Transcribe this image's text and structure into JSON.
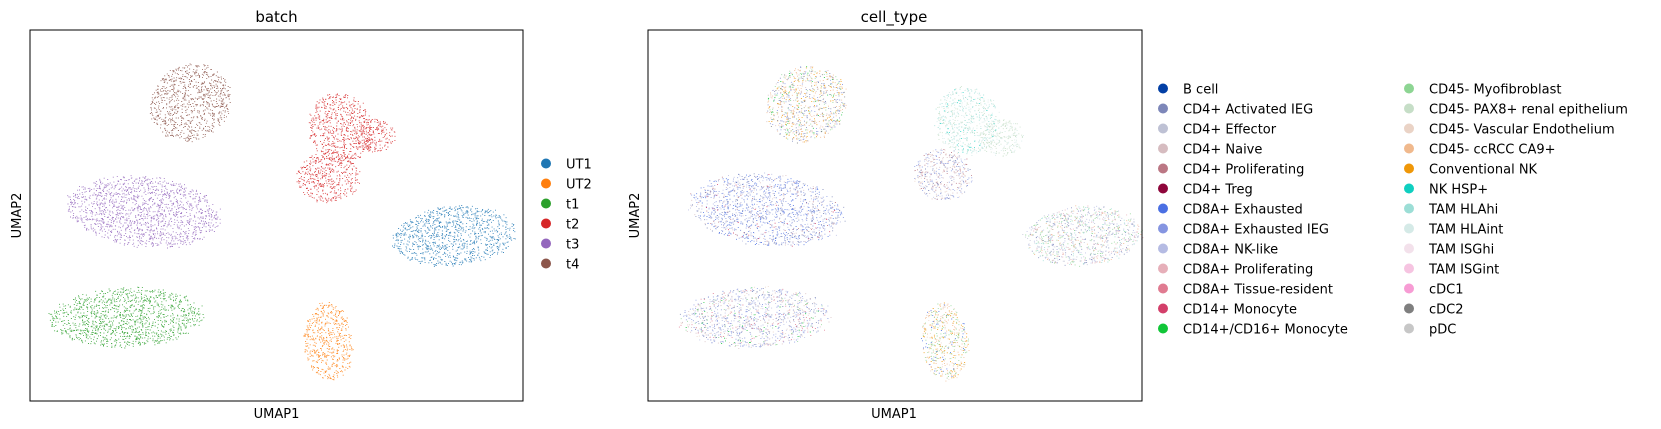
{
  "chart_data": [
    {
      "type": "scatter",
      "title": "batch",
      "xlabel": "UMAP1",
      "ylabel": "UMAP2",
      "xlim": [
        0,
        100
      ],
      "ylim": [
        0,
        100
      ],
      "grid": false,
      "legend_placement": "right",
      "legend": [
        {
          "name": "UT1",
          "color": "#1f77b4"
        },
        {
          "name": "UT2",
          "color": "#ff7f0e"
        },
        {
          "name": "t1",
          "color": "#2ca02c"
        },
        {
          "name": "t2",
          "color": "#d62728"
        },
        {
          "name": "t3",
          "color": "#9467bd"
        },
        {
          "name": "t4",
          "color": "#8c564b"
        }
      ],
      "clusters": [
        {
          "series": "t4",
          "cx": 32.5,
          "cy": 80.5,
          "rx": 8.5,
          "ry": 10.0,
          "rot": 35
        },
        {
          "series": "t2",
          "cx": 63.0,
          "cy": 73.5,
          "rx": 6.5,
          "ry": 9.5,
          "rot": 30
        },
        {
          "series": "t2",
          "cx": 60.5,
          "cy": 60.5,
          "rx": 6.5,
          "ry": 7.0,
          "rot": 0
        },
        {
          "series": "t2",
          "cx": 70.0,
          "cy": 71.5,
          "rx": 4.0,
          "ry": 4.5,
          "rot": 0
        },
        {
          "series": "t3",
          "cx": 23.0,
          "cy": 51.0,
          "rx": 15.5,
          "ry": 9.5,
          "rot": -6
        },
        {
          "series": "UT1",
          "cx": 86.0,
          "cy": 44.5,
          "rx": 12.5,
          "ry": 8.0,
          "rot": 5
        },
        {
          "series": "t1",
          "cx": 19.5,
          "cy": 22.5,
          "rx": 15.5,
          "ry": 8.0,
          "rot": 2
        },
        {
          "series": "UT2",
          "cx": 60.5,
          "cy": 16.0,
          "rx": 5.0,
          "ry": 10.5,
          "rot": 5
        }
      ]
    },
    {
      "type": "scatter",
      "title": "cell_type",
      "xlabel": "UMAP1",
      "ylabel": "UMAP2",
      "xlim": [
        0,
        100
      ],
      "ylim": [
        0,
        100
      ],
      "grid": false,
      "legend_placement": "right",
      "legend": [
        {
          "name": "B cell",
          "color": "#023fa5"
        },
        {
          "name": "CD4+ Activated IEG",
          "color": "#7d87b9"
        },
        {
          "name": "CD4+ Effector",
          "color": "#bec1d4"
        },
        {
          "name": "CD4+ Naive",
          "color": "#d6bcc0"
        },
        {
          "name": "CD4+ Proliferating",
          "color": "#bb7784"
        },
        {
          "name": "CD4+ Treg",
          "color": "#8e063b"
        },
        {
          "name": "CD8A+ Exhausted",
          "color": "#4a6fe3"
        },
        {
          "name": "CD8A+ Exhausted IEG",
          "color": "#8595e1"
        },
        {
          "name": "CD8A+ NK-like",
          "color": "#b5bbe3"
        },
        {
          "name": "CD8A+ Proliferating",
          "color": "#e6afb9"
        },
        {
          "name": "CD8A+ Tissue-resident",
          "color": "#e07b91"
        },
        {
          "name": "CD14+ Monocyte",
          "color": "#d33f6a"
        },
        {
          "name": "CD14+/CD16+ Monocyte",
          "color": "#11c638"
        },
        {
          "name": "CD45- Myofibroblast",
          "color": "#8dd593"
        },
        {
          "name": "CD45- PAX8+ renal epithelium",
          "color": "#c6dec7"
        },
        {
          "name": "CD45- Vascular Endothelium",
          "color": "#ead3c6"
        },
        {
          "name": "CD45- ccRCC CA9+",
          "color": "#f0b98d"
        },
        {
          "name": "Conventional NK",
          "color": "#ef9708"
        },
        {
          "name": "NK HSP+",
          "color": "#0fcfc0"
        },
        {
          "name": "TAM HLAhi",
          "color": "#9cded6"
        },
        {
          "name": "TAM HLAint",
          "color": "#d5eae7"
        },
        {
          "name": "TAM ISGhi",
          "color": "#f3e1eb"
        },
        {
          "name": "TAM ISGint",
          "color": "#f6c4e1"
        },
        {
          "name": "cDC1",
          "color": "#f79cd4"
        },
        {
          "name": "cDC2",
          "color": "#7f7f7f"
        },
        {
          "name": "pDC",
          "color": "#c7c7c7"
        }
      ],
      "clusters": [
        {
          "cx": 32.0,
          "cy": 80.0,
          "rx": 8.5,
          "ry": 10.0,
          "rot": 35,
          "mix": [
            {
              "name": "CD45- ccRCC CA9+",
              "w": 3
            },
            {
              "name": "Conventional NK",
              "w": 2
            },
            {
              "name": "CD4+ Activated IEG",
              "w": 2
            },
            {
              "name": "CD45- Myofibroblast",
              "w": 1.5
            },
            {
              "name": "CD8A+ Exhausted IEG",
              "w": 1.5
            },
            {
              "name": "CD4+ Naive",
              "w": 1
            },
            {
              "name": "CD14+/CD16+ Monocyte",
              "w": 0.4
            },
            {
              "name": "cDC2",
              "w": 0.5
            }
          ]
        },
        {
          "cx": 64.5,
          "cy": 75.5,
          "rx": 6.5,
          "ry": 9.0,
          "rot": 20,
          "mix": [
            {
              "name": "TAM HLAhi",
              "w": 4
            },
            {
              "name": "TAM HLAint",
              "w": 3
            },
            {
              "name": "CD45- PAX8+ renal epithelium",
              "w": 2
            },
            {
              "name": "NK HSP+",
              "w": 0.5
            }
          ]
        },
        {
          "cx": 71.5,
          "cy": 71.0,
          "rx": 4.5,
          "ry": 5.0,
          "rot": 0,
          "mix": [
            {
              "name": "CD45- PAX8+ renal epithelium",
              "w": 4
            },
            {
              "name": "TAM HLAint",
              "w": 2
            }
          ]
        },
        {
          "cx": 59.5,
          "cy": 61.0,
          "rx": 6.0,
          "ry": 7.0,
          "rot": 0,
          "mix": [
            {
              "name": "CD8A+ Exhausted IEG",
              "w": 2
            },
            {
              "name": "CD4+ Proliferating",
              "w": 1.5
            },
            {
              "name": "CD4+ Naive",
              "w": 2
            },
            {
              "name": "CD8A+ NK-like",
              "w": 1.5
            },
            {
              "name": "CD4+ Activated IEG",
              "w": 1.5
            },
            {
              "name": "CD45- Vascular Endothelium",
              "w": 1
            }
          ]
        },
        {
          "cx": 24.0,
          "cy": 51.5,
          "rx": 15.5,
          "ry": 9.5,
          "rot": -6,
          "mix": [
            {
              "name": "CD8A+ Exhausted",
              "w": 3
            },
            {
              "name": "CD8A+ Exhausted IEG",
              "w": 3
            },
            {
              "name": "CD4+ Activated IEG",
              "w": 2
            },
            {
              "name": "CD8A+ NK-like",
              "w": 2
            },
            {
              "name": "CD4+ Proliferating",
              "w": 0.5
            },
            {
              "name": "CD4+ Naive",
              "w": 1
            },
            {
              "name": "CD14+ Monocyte",
              "w": 0.3
            }
          ]
        },
        {
          "cx": 88.0,
          "cy": 44.5,
          "rx": 12.0,
          "ry": 8.0,
          "rot": 5,
          "mix": [
            {
              "name": "CD8A+ NK-like",
              "w": 2
            },
            {
              "name": "CD45- Myofibroblast",
              "w": 2
            },
            {
              "name": "CD4+ Activated IEG",
              "w": 2
            },
            {
              "name": "CD8A+ Proliferating",
              "w": 1.5
            },
            {
              "name": "CD45- ccRCC CA9+",
              "w": 1
            },
            {
              "name": "CD4+ Effector",
              "w": 1.5
            },
            {
              "name": "TAM HLAhi",
              "w": 1
            }
          ]
        },
        {
          "cx": 21.5,
          "cy": 22.5,
          "rx": 15.0,
          "ry": 8.0,
          "rot": 2,
          "mix": [
            {
              "name": "CD8A+ Exhausted IEG",
              "w": 2.5
            },
            {
              "name": "CD4+ Activated IEG",
              "w": 2
            },
            {
              "name": "CD8A+ NK-like",
              "w": 2
            },
            {
              "name": "CD4+ Naive",
              "w": 1.5
            },
            {
              "name": "CD8A+ Tissue-resident",
              "w": 1
            },
            {
              "name": "CD45- Vascular Endothelium",
              "w": 1
            },
            {
              "name": "CD45- Myofibroblast",
              "w": 0.6
            },
            {
              "name": "CD14+/CD16+ Monocyte",
              "w": 0.3
            }
          ]
        },
        {
          "cx": 60.0,
          "cy": 16.0,
          "rx": 4.8,
          "ry": 10.5,
          "rot": 5,
          "mix": [
            {
              "name": "CD45- ccRCC CA9+",
              "w": 2.5
            },
            {
              "name": "CD45- Myofibroblast",
              "w": 2.5
            },
            {
              "name": "Conventional NK",
              "w": 1.5
            },
            {
              "name": "CD8A+ Exhausted",
              "w": 1
            },
            {
              "name": "CD45- Vascular Endothelium",
              "w": 1
            }
          ]
        }
      ]
    }
  ]
}
